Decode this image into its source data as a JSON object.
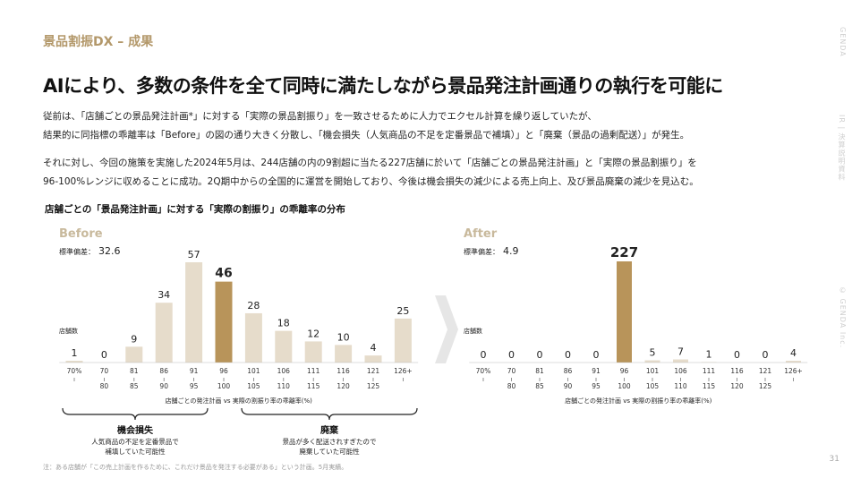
{
  "header": {
    "section_label": "景品割振DX – 成果",
    "headline": "AIにより、多数の条件を全て同時に満たしながら景品発注計画通りの執行を可能に"
  },
  "body": {
    "paragraph1_line1": "従前は、「店舗ごとの景品発注計画*」に対する「実際の景品割振り」を一致させるために人力でエクセル計算を繰り返していたが、",
    "paragraph1_line2": "結果的に同指標の乖離率は「Before」の図の通り大きく分散し、「機会損失（人気商品の不足を定番景品で補填）」と「廃棄（景品の過剰配送）」が発生。",
    "paragraph2_line1": "それに対し、今回の施策を実施した2024年5月は、244店舗の内の9割超に当たる227店舗に於いて「店舗ごとの景品発注計画」と「実際の景品割振り」を",
    "paragraph2_line2": "96-100%レンジに収めることに成功。2Q期中からの全国的に運営を開始しており、今後は機会損失の減少による売上向上、及び景品廃棄の減少を見込む。"
  },
  "sidebar": {
    "brand": "GENDA",
    "document": "IR | 決算説明資料",
    "copyright": "© GENDA Inc."
  },
  "page_number": "31",
  "footnote": "注：ある店舗が「この売上計画を作るために、これだけ景品を発注する必要がある」という計画。5月実績。",
  "chart_data": [
    {
      "type": "bar",
      "panel": "Before",
      "title": "店舗ごとの「景品発注計画」に対する「実際の割振り」の乖離率の分布",
      "ylabel": "店舗数",
      "xlabel": "店舗ごとの発注計画 vs 実際の割振り率の乖離率(%)",
      "stat_label": "標準偏差：",
      "stat_value": "32.6",
      "categories": [
        {
          "top": "70%",
          "bottom": ""
        },
        {
          "top": "70",
          "bottom": "80"
        },
        {
          "top": "81",
          "bottom": "85"
        },
        {
          "top": "86",
          "bottom": "90"
        },
        {
          "top": "91",
          "bottom": "95"
        },
        {
          "top": "96",
          "bottom": "100"
        },
        {
          "top": "101",
          "bottom": "105"
        },
        {
          "top": "106",
          "bottom": "110"
        },
        {
          "top": "111",
          "bottom": "115"
        },
        {
          "top": "116",
          "bottom": "120"
        },
        {
          "top": "121",
          "bottom": "125"
        },
        {
          "top": "126+",
          "bottom": ""
        }
      ],
      "values": [
        1,
        0,
        9,
        34,
        57,
        46,
        28,
        18,
        12,
        10,
        4,
        25
      ],
      "highlight_index": 5,
      "bar_color": "#e6dccb",
      "highlight_color": "#b8945a"
    },
    {
      "type": "bar",
      "panel": "After",
      "ylabel": "店舗数",
      "xlabel": "店舗ごとの発注計画 vs 実際の割振り率の乖離率(%)",
      "stat_label": "標準偏差：",
      "stat_value": "4.9",
      "categories": [
        {
          "top": "70%",
          "bottom": ""
        },
        {
          "top": "70",
          "bottom": "80"
        },
        {
          "top": "81",
          "bottom": "85"
        },
        {
          "top": "86",
          "bottom": "90"
        },
        {
          "top": "91",
          "bottom": "95"
        },
        {
          "top": "96",
          "bottom": "100"
        },
        {
          "top": "101",
          "bottom": "105"
        },
        {
          "top": "106",
          "bottom": "110"
        },
        {
          "top": "111",
          "bottom": "115"
        },
        {
          "top": "116",
          "bottom": "120"
        },
        {
          "top": "121",
          "bottom": "125"
        },
        {
          "top": "126+",
          "bottom": ""
        }
      ],
      "values": [
        0,
        0,
        0,
        0,
        0,
        227,
        5,
        7,
        1,
        0,
        0,
        4
      ],
      "highlight_index": 5,
      "bar_color": "#e6dccb",
      "highlight_color": "#b8945a"
    }
  ],
  "annotations": {
    "opportunity_loss": {
      "title": "機会損失",
      "line1": "人気商品の不足を定番景品で",
      "line2": "補填していた可能性"
    },
    "waste": {
      "title": "廃棄",
      "line1": "景品が多く配送されすぎたので",
      "line2": "廃棄していた可能性"
    }
  },
  "colors": {
    "accent": "#b3986a",
    "bar": "#e6dccb",
    "highlight": "#b8945a",
    "panel_label": "#c8b99c"
  }
}
